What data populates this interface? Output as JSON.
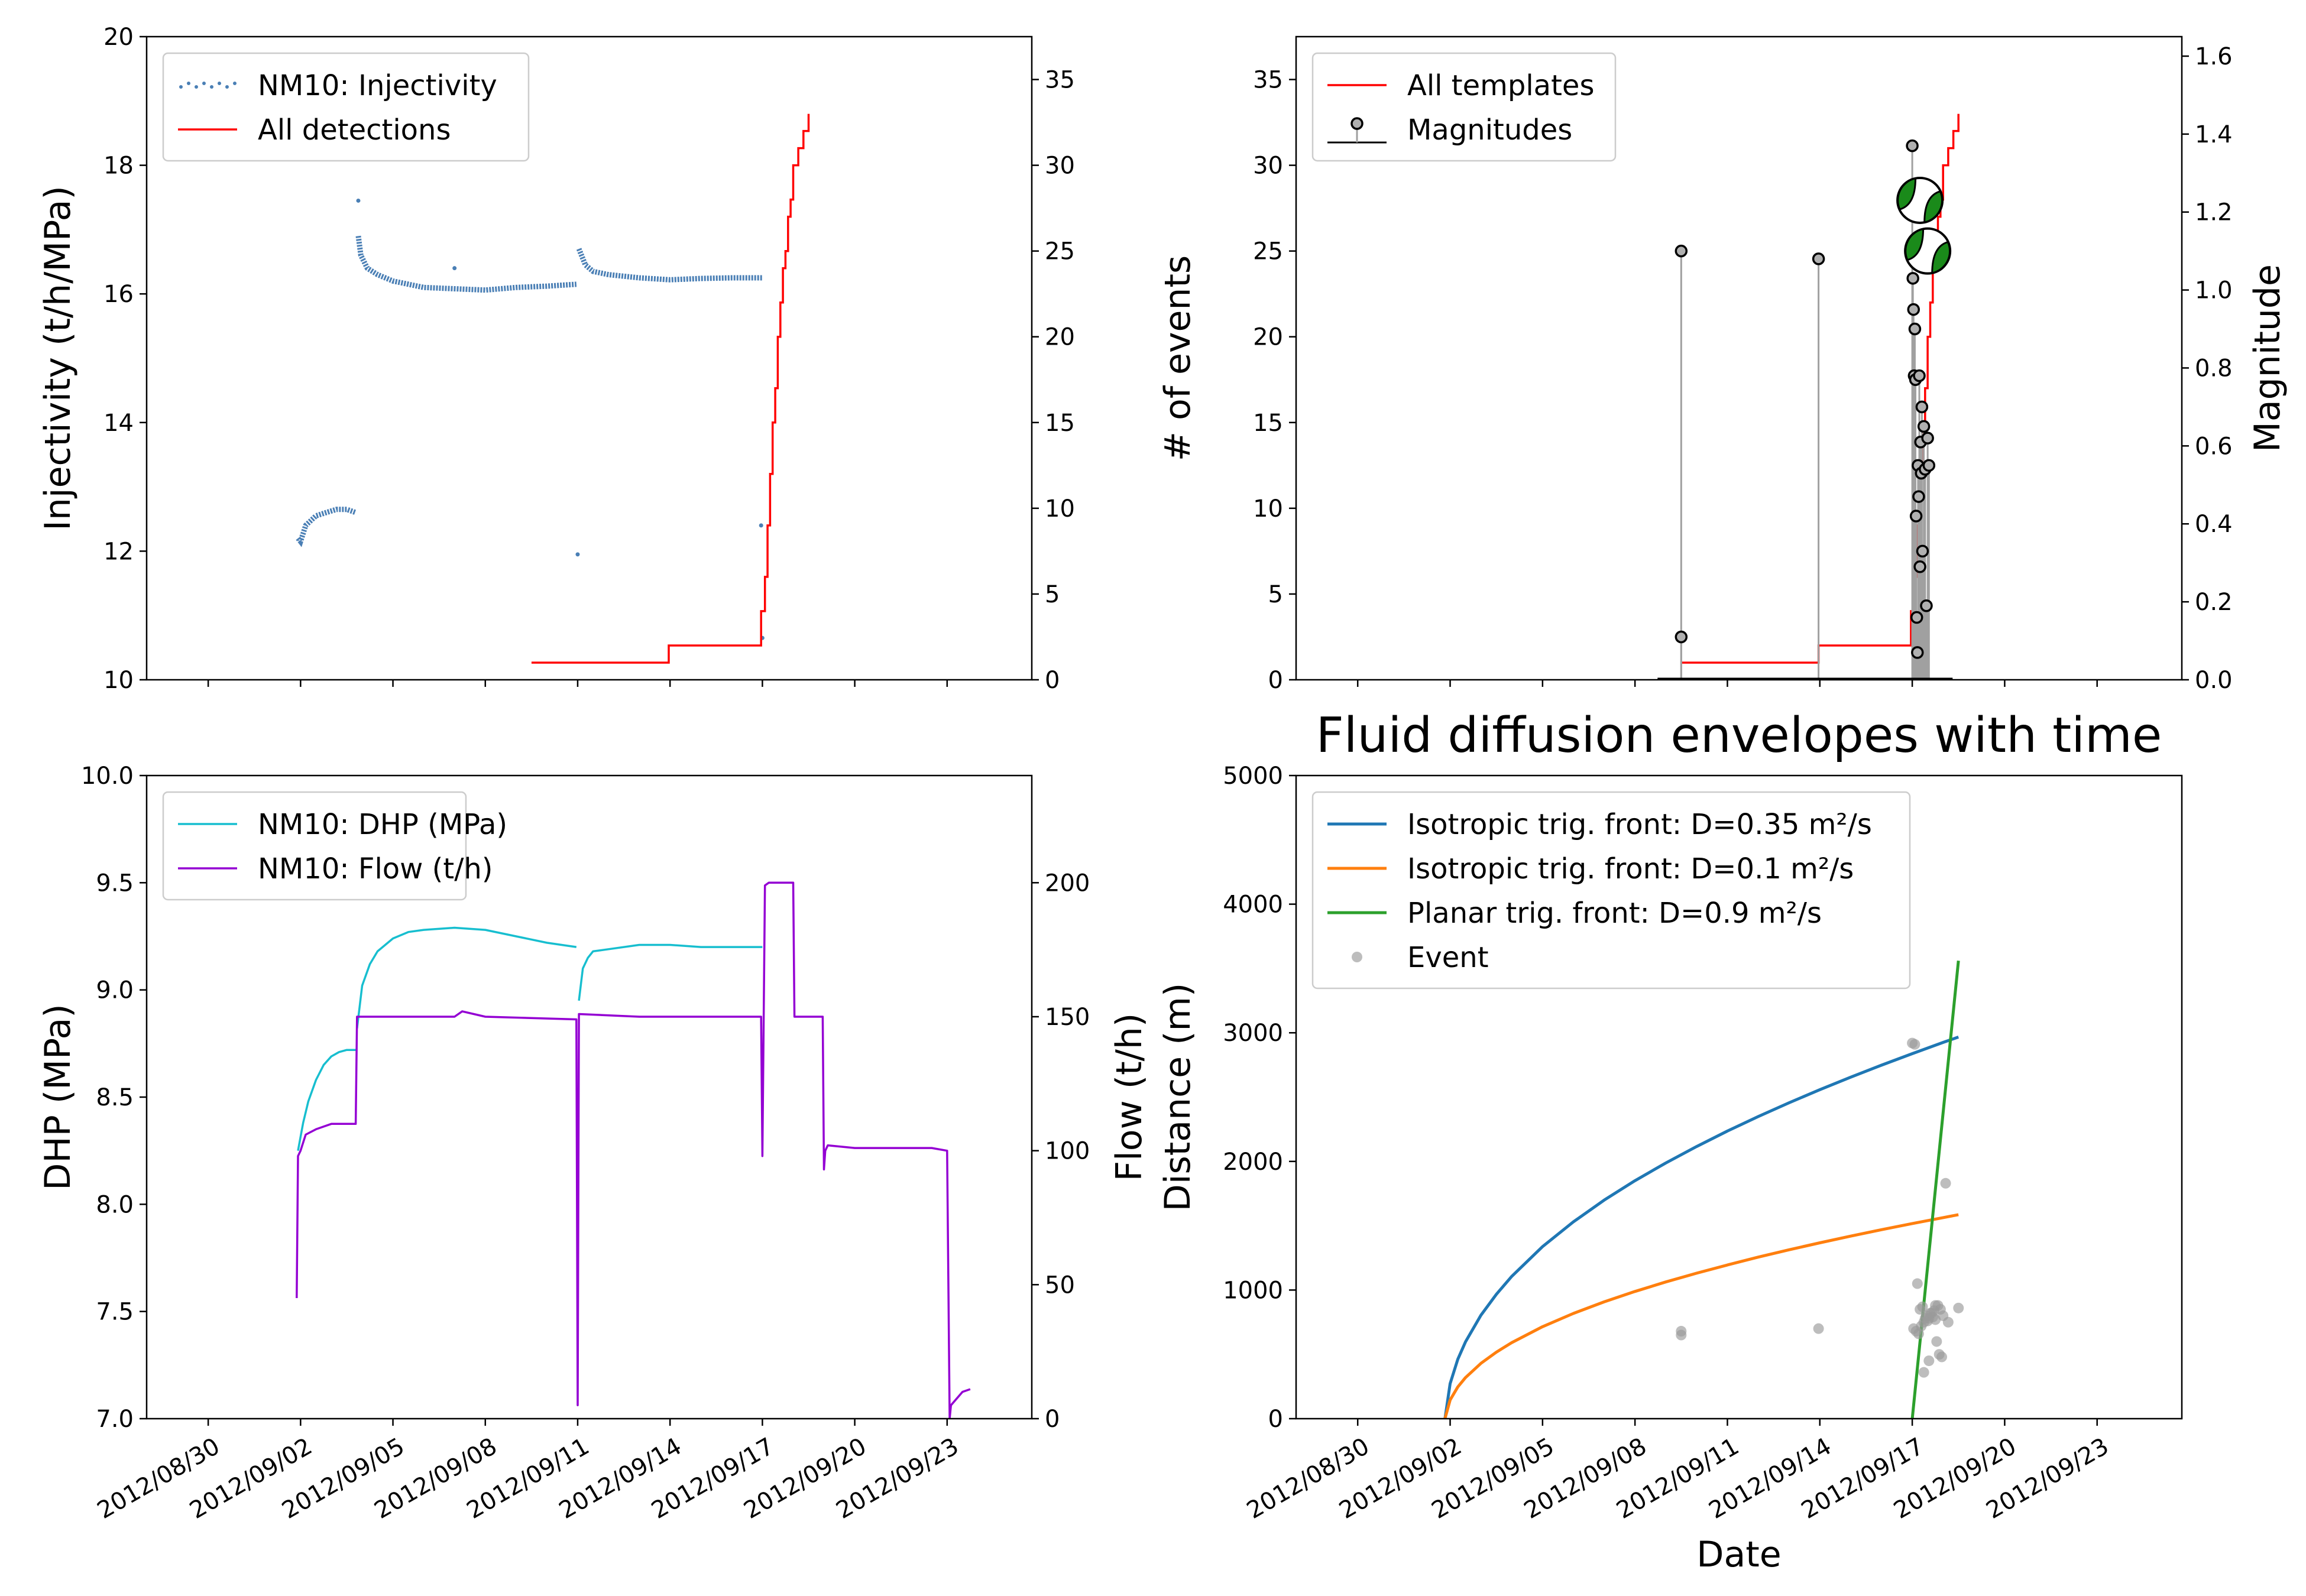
{
  "chart_data": [
    {
      "type": "line",
      "panel": "injectivity",
      "ylabel": "Injectivity (t/h/MPa)",
      "ylim": [
        10,
        20
      ],
      "yticks": [
        10,
        12,
        14,
        16,
        18,
        20
      ],
      "y2lim": [
        0,
        37.5
      ],
      "y2ticks": [
        0,
        5,
        10,
        15,
        20,
        25,
        30,
        35
      ],
      "xlim": [
        "2012-08-28",
        "2012-09-25 18:00"
      ],
      "grid": false,
      "legend_position": "upper-left",
      "legend": [
        "NM10: Injectivity",
        "All detections"
      ],
      "series": [
        {
          "name": "NM10: Injectivity",
          "axis": "left",
          "style": "dots",
          "color": "#4a7fb5",
          "segments": [
            {
              "x": [
                "2012-09-01 22:00",
                "2012-09-02 00:00",
                "2012-09-02 04:00",
                "2012-09-02 12:00",
                "2012-09-02 20:00",
                "2012-09-03 04:00",
                "2012-09-03 12:00",
                "2012-09-03 19:00"
              ],
              "y": [
                12.2,
                12.15,
                12.4,
                12.55,
                12.6,
                12.65,
                12.65,
                12.6
              ]
            },
            {
              "x": [
                "2012-09-03 21:00",
                "2012-09-03 23:00",
                "2012-09-04 04:00",
                "2012-09-04 12:00",
                "2012-09-05 00:00",
                "2012-09-06 00:00",
                "2012-09-07 00:00",
                "2012-09-08 00:00",
                "2012-09-09 00:00",
                "2012-09-10 00:00",
                "2012-09-10 23:00"
              ],
              "y": [
                16.9,
                16.6,
                16.4,
                16.3,
                16.2,
                16.1,
                16.08,
                16.06,
                16.1,
                16.12,
                16.15
              ]
            },
            {
              "x": [
                "2012-09-11 01:00",
                "2012-09-11 06:00",
                "2012-09-11 12:00",
                "2012-09-12 00:00",
                "2012-09-13 00:00",
                "2012-09-14 00:00",
                "2012-09-15 00:00",
                "2012-09-16 00:00",
                "2012-09-17 00:00"
              ],
              "y": [
                16.7,
                16.45,
                16.35,
                16.3,
                16.25,
                16.22,
                16.24,
                16.25,
                16.25
              ]
            }
          ],
          "outliers": {
            "x": [
              "2012-09-03 21:00",
              "2012-09-11 00:00",
              "2012-09-16 23:00",
              "2012-09-17 00:00",
              "2012-09-07 00:00"
            ],
            "y": [
              17.45,
              11.95,
              12.4,
              10.65,
              16.4
            ]
          }
        },
        {
          "name": "All detections",
          "axis": "right",
          "style": "step",
          "color": "#ff0000",
          "x": [
            "2012-09-09 12:00",
            "2012-09-13 23:00",
            "2012-09-16 23:00",
            "2012-09-17 02:00",
            "2012-09-17 04:00",
            "2012-09-17 06:00",
            "2012-09-17 08:00",
            "2012-09-17 10:00",
            "2012-09-17 12:00",
            "2012-09-17 14:00",
            "2012-09-17 16:00",
            "2012-09-17 18:00",
            "2012-09-17 20:00",
            "2012-09-17 22:00",
            "2012-09-18 00:00",
            "2012-09-18 04:00",
            "2012-09-18 08:00",
            "2012-09-18 12:00"
          ],
          "y": [
            1,
            2,
            4,
            6,
            9,
            12,
            15,
            17,
            20,
            22,
            24,
            25,
            27,
            28,
            30,
            31,
            32,
            33
          ]
        }
      ]
    },
    {
      "type": "line",
      "panel": "events",
      "ylabel": "# of events",
      "y2label": "Magnitude",
      "ylim": [
        0,
        37.5
      ],
      "yticks": [
        0,
        5,
        10,
        15,
        20,
        25,
        30,
        35
      ],
      "y2lim": [
        0,
        1.65
      ],
      "y2ticks": [
        0.0,
        0.2,
        0.4,
        0.6,
        0.8,
        1.0,
        1.2,
        1.4,
        1.6
      ],
      "xlim": [
        "2012-08-28",
        "2012-09-25 18:00"
      ],
      "grid": false,
      "legend_position": "upper-left",
      "legend": [
        "All templates",
        "Magnitudes"
      ],
      "series": [
        {
          "name": "All templates",
          "axis": "left",
          "style": "step",
          "color": "#ff0000",
          "x": [
            "2012-09-09 12:00",
            "2012-09-13 23:00",
            "2012-09-16 23:00",
            "2012-09-17 02:00",
            "2012-09-17 04:00",
            "2012-09-17 06:00",
            "2012-09-17 08:00",
            "2012-09-17 10:00",
            "2012-09-17 12:00",
            "2012-09-17 14:00",
            "2012-09-17 16:00",
            "2012-09-17 18:00",
            "2012-09-17 20:00",
            "2012-09-17 22:00",
            "2012-09-18 00:00",
            "2012-09-18 04:00",
            "2012-09-18 08:00",
            "2012-09-18 12:00"
          ],
          "y": [
            1,
            2,
            4,
            6,
            9,
            12,
            15,
            17,
            20,
            22,
            24,
            25,
            27,
            28,
            30,
            31,
            32,
            33
          ]
        },
        {
          "name": "Magnitudes",
          "axis": "right",
          "style": "stem",
          "color": "#a0a0a0",
          "x": [
            "2012-09-09 12:00",
            "2012-09-09 12:00",
            "2012-09-13 23:00",
            "2012-09-17 00:00",
            "2012-09-17 00:30",
            "2012-09-17 01:00",
            "2012-09-17 01:30",
            "2012-09-17 02:00",
            "2012-09-17 02:30",
            "2012-09-17 03:00",
            "2012-09-17 03:30",
            "2012-09-17 04:00",
            "2012-09-17 04:30",
            "2012-09-17 05:00",
            "2012-09-17 05:30",
            "2012-09-17 06:00",
            "2012-09-17 06:30",
            "2012-09-17 07:00",
            "2012-09-17 07:30",
            "2012-09-17 08:00",
            "2012-09-17 09:00",
            "2012-09-17 10:00",
            "2012-09-17 11:00",
            "2012-09-17 12:00",
            "2012-09-17 13:00"
          ],
          "y": [
            1.1,
            0.11,
            1.08,
            1.37,
            1.03,
            0.95,
            0.78,
            0.9,
            0.77,
            0.42,
            0.16,
            0.07,
            0.55,
            0.47,
            0.78,
            0.29,
            0.61,
            0.53,
            0.7,
            0.33,
            0.65,
            0.54,
            0.19,
            0.62,
            0.55
          ]
        }
      ],
      "focal_mechanisms": [
        {
          "x": "2012-09-17 06:00",
          "magnitude": 1.23,
          "color": "#1a8a1a"
        },
        {
          "x": "2012-09-17 12:00",
          "magnitude": 1.1,
          "color": "#1a8a1a"
        }
      ]
    },
    {
      "type": "line",
      "panel": "pressure-flow",
      "ylabel": "DHP (MPa)",
      "y2label": "Flow (t/h)",
      "ylim": [
        7.0,
        10.0
      ],
      "yticks": [
        7.0,
        7.5,
        8.0,
        8.5,
        9.0,
        9.5,
        10.0
      ],
      "y2lim": [
        0,
        240
      ],
      "y2ticks": [
        0,
        50,
        100,
        150,
        200
      ],
      "xlim": [
        "2012-08-28",
        "2012-09-25 18:00"
      ],
      "xticks": [
        "2012/08/30",
        "2012/09/02",
        "2012/09/05",
        "2012/09/08",
        "2012/09/11",
        "2012/09/14",
        "2012/09/17",
        "2012/09/20",
        "2012/09/23"
      ],
      "grid": false,
      "legend_position": "upper-left",
      "legend": [
        "NM10: DHP (MPa)",
        "NM10: Flow (t/h)"
      ],
      "series": [
        {
          "name": "NM10: DHP (MPa)",
          "axis": "left",
          "color": "#17becf",
          "segments": [
            {
              "x": [
                "2012-09-01 22:00",
                "2012-09-02 02:00",
                "2012-09-02 06:00",
                "2012-09-02 12:00",
                "2012-09-02 18:00",
                "2012-09-03 00:00",
                "2012-09-03 06:00",
                "2012-09-03 12:00",
                "2012-09-03 19:00"
              ],
              "y": [
                8.25,
                8.38,
                8.48,
                8.58,
                8.65,
                8.69,
                8.71,
                8.72,
                8.72
              ]
            },
            {
              "x": [
                "2012-09-03 20:00",
                "2012-09-04 00:00",
                "2012-09-04 06:00",
                "2012-09-04 12:00",
                "2012-09-05 00:00",
                "2012-09-05 12:00",
                "2012-09-06 00:00",
                "2012-09-07 00:00",
                "2012-09-08 00:00",
                "2012-09-09 00:00",
                "2012-09-10 00:00",
                "2012-09-10 23:00"
              ],
              "y": [
                8.82,
                9.02,
                9.12,
                9.18,
                9.24,
                9.27,
                9.28,
                9.29,
                9.28,
                9.25,
                9.22,
                9.2
              ]
            },
            {
              "x": [
                "2012-09-11 01:00",
                "2012-09-11 04:00",
                "2012-09-11 08:00",
                "2012-09-11 12:00",
                "2012-09-12 00:00",
                "2012-09-13 00:00",
                "2012-09-14 00:00",
                "2012-09-15 00:00",
                "2012-09-16 00:00",
                "2012-09-17 00:00"
              ],
              "y": [
                8.95,
                9.1,
                9.15,
                9.18,
                9.19,
                9.21,
                9.21,
                9.2,
                9.2,
                9.2
              ]
            }
          ]
        },
        {
          "name": "NM10: Flow (t/h)",
          "axis": "right",
          "color": "#9400d3",
          "x": [
            "2012-09-01 21:00",
            "2012-09-01 22:00",
            "2012-09-02 00:00",
            "2012-09-02 04:00",
            "2012-09-02 12:00",
            "2012-09-03 00:00",
            "2012-09-03 19:00",
            "2012-09-03 20:00",
            "2012-09-03 21:00",
            "2012-09-05 00:00",
            "2012-09-07 00:00",
            "2012-09-07 06:00",
            "2012-09-08 00:00",
            "2012-09-10 23:00",
            "2012-09-11 00:00",
            "2012-09-11 01:00",
            "2012-09-13 00:00",
            "2012-09-16 23:00",
            "2012-09-17 00:00",
            "2012-09-17 01:00",
            "2012-09-17 02:00",
            "2012-09-17 05:00",
            "2012-09-18 00:00",
            "2012-09-18 01:00",
            "2012-09-18 02:00",
            "2012-09-18 23:00",
            "2012-09-19 00:00",
            "2012-09-19 01:00",
            "2012-09-19 03:00",
            "2012-09-20 00:00",
            "2012-09-22 12:00",
            "2012-09-23 00:00",
            "2012-09-23 02:00",
            "2012-09-23 03:00",
            "2012-09-23 12:00",
            "2012-09-23 18:00"
          ],
          "y": [
            45,
            98,
            100,
            106,
            108,
            110,
            110,
            150,
            150,
            150,
            150,
            152,
            150,
            149,
            5,
            151,
            150,
            150,
            98,
            150,
            199,
            200,
            200,
            150,
            150,
            150,
            93,
            100,
            102,
            101,
            101,
            100,
            0,
            5,
            10,
            11
          ]
        }
      ]
    },
    {
      "type": "line",
      "panel": "diffusion",
      "title": "Fluid diffusion envelopes with time",
      "xlabel": "Date",
      "ylabel": "Distance (m)",
      "ylim": [
        0,
        5000
      ],
      "yticks": [
        0,
        1000,
        2000,
        3000,
        4000,
        5000
      ],
      "xlim": [
        "2012-08-28",
        "2012-09-25 18:00"
      ],
      "xticks": [
        "2012/08/30",
        "2012/09/02",
        "2012/09/05",
        "2012/09/08",
        "2012/09/11",
        "2012/09/14",
        "2012/09/17",
        "2012/09/20",
        "2012/09/23"
      ],
      "grid": false,
      "legend_position": "upper-left",
      "legend": [
        "Isotropic trig. front: D=0.35 m²/s",
        "Isotropic trig. front: D=0.1 m²/s",
        "Planar trig. front: D=0.9 m²/s",
        "Event"
      ],
      "series": [
        {
          "name": "Isotropic trig. front: D=0.35 m²/s",
          "color": "#1f77b4",
          "x": [
            "2012-09-01 20:00",
            "2012-09-02 00:00",
            "2012-09-02 06:00",
            "2012-09-02 12:00",
            "2012-09-03 00:00",
            "2012-09-03 12:00",
            "2012-09-04 00:00",
            "2012-09-05 00:00",
            "2012-09-06 00:00",
            "2012-09-07 00:00",
            "2012-09-08 00:00",
            "2012-09-09 00:00",
            "2012-09-10 00:00",
            "2012-09-11 00:00",
            "2012-09-12 00:00",
            "2012-09-13 00:00",
            "2012-09-14 00:00",
            "2012-09-15 00:00",
            "2012-09-16 00:00",
            "2012-09-17 00:00",
            "2012-09-18 00:00",
            "2012-09-18 12:00"
          ],
          "y": [
            0,
            272,
            462,
            598,
            804,
            967,
            1106,
            1338,
            1530,
            1699,
            1850,
            1988,
            2116,
            2236,
            2349,
            2456,
            2558,
            2655,
            2748,
            2838,
            2925,
            2967
          ]
        },
        {
          "name": "Isotropic trig. front: D=0.1 m²/s",
          "color": "#ff7f0e",
          "x": [
            "2012-09-01 20:00",
            "2012-09-02 00:00",
            "2012-09-02 06:00",
            "2012-09-02 12:00",
            "2012-09-03 00:00",
            "2012-09-03 12:00",
            "2012-09-04 00:00",
            "2012-09-05 00:00",
            "2012-09-06 00:00",
            "2012-09-07 00:00",
            "2012-09-08 00:00",
            "2012-09-09 00:00",
            "2012-09-10 00:00",
            "2012-09-11 00:00",
            "2012-09-12 00:00",
            "2012-09-13 00:00",
            "2012-09-14 00:00",
            "2012-09-15 00:00",
            "2012-09-16 00:00",
            "2012-09-17 00:00",
            "2012-09-18 00:00",
            "2012-09-18 12:00"
          ],
          "y": [
            0,
            145,
            247,
            320,
            430,
            517,
            591,
            715,
            818,
            908,
            989,
            1063,
            1131,
            1195,
            1256,
            1313,
            1367,
            1419,
            1469,
            1517,
            1563,
            1586
          ]
        },
        {
          "name": "Planar trig. front: D=0.9 m²/s",
          "color": "#2ca02c",
          "x": [
            "2012-09-17 00:00",
            "2012-09-18 12:00"
          ],
          "y": [
            0,
            3560
          ]
        }
      ],
      "events": {
        "name": "Event",
        "color": "#999999",
        "x": [
          "2012-09-09 12:00",
          "2012-09-09 12:00",
          "2012-09-13 23:00",
          "2012-09-17 00:00",
          "2012-09-17 02:00",
          "2012-09-17 04:00",
          "2012-09-17 06:00",
          "2012-09-17 08:00",
          "2012-09-17 10:00",
          "2012-09-17 12:00",
          "2012-09-17 14:00",
          "2012-09-17 16:00",
          "2012-09-17 18:00",
          "2012-09-17 20:00",
          "2012-09-17 22:00",
          "2012-09-18 00:00",
          "2012-09-18 04:00",
          "2012-09-18 12:00",
          "2012-09-17 01:00",
          "2012-09-17 03:00",
          "2012-09-17 05:00",
          "2012-09-17 07:00",
          "2012-09-17 09:00",
          "2012-09-17 11:00",
          "2012-09-17 13:00",
          "2012-09-17 15:00",
          "2012-09-17 17:00",
          "2012-09-17 19:00",
          "2012-09-17 21:00",
          "2012-09-17 23:00",
          "2012-09-18 02:00",
          "2012-09-17 09:00",
          "2012-09-17 13:00",
          "2012-09-17 18:00"
        ],
        "y": [
          650,
          680,
          700,
          2920,
          2910,
          1050,
          850,
          870,
          780,
          760,
          820,
          790,
          770,
          880,
          850,
          800,
          750,
          860,
          700,
          680,
          660,
          720,
          750,
          800,
          780,
          820,
          840,
          600,
          500,
          480,
          1830,
          360,
          450,
          880
        ]
      }
    }
  ]
}
